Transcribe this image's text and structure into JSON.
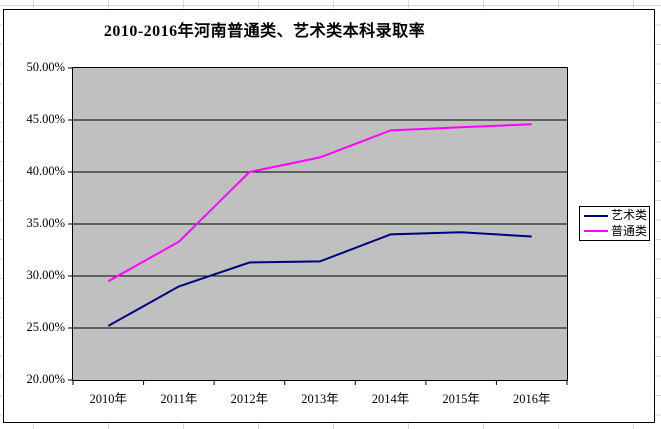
{
  "chart_data": {
    "type": "line",
    "title": "2010-2016年河南普通类、艺术类本科录取率",
    "categories": [
      "2010年",
      "2011年",
      "2012年",
      "2013年",
      "2014年",
      "2015年",
      "2016年"
    ],
    "series": [
      {
        "name": "艺术类",
        "color": "#000080",
        "values": [
          25.2,
          29.0,
          31.3,
          31.4,
          34.0,
          34.2,
          33.8
        ]
      },
      {
        "name": "普通类",
        "color": "#FF00FF",
        "values": [
          29.5,
          33.3,
          40.0,
          41.4,
          44.0,
          44.3,
          44.6
        ]
      }
    ],
    "y_axis": {
      "min": 20,
      "max": 50,
      "step": 5,
      "tick_labels": [
        "50.00%",
        "45.00%",
        "40.00%",
        "35.00%",
        "30.00%",
        "25.00%",
        "20.00%"
      ]
    },
    "x_axis": {
      "label_suffix": "年"
    },
    "legend_position": "right",
    "grid": true,
    "plot_background": "#C0C0C0",
    "gridline_color": "#000000",
    "chart_background": "#FFFFFF"
  }
}
